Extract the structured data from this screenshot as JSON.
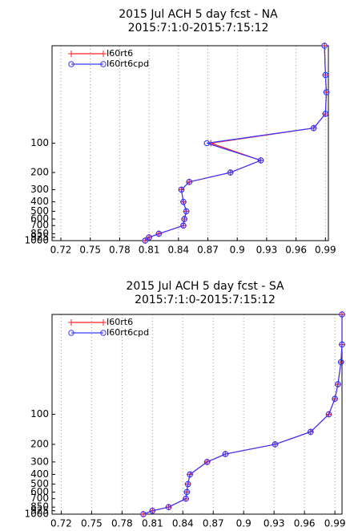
{
  "chart_data": [
    {
      "type": "line",
      "title": "2015 Jul ACH  5 day fcst - NA",
      "subtitle": "2015:7:1:0-2015:7:15:12",
      "y": [
        10,
        20,
        30,
        50,
        70,
        100,
        150,
        200,
        250,
        300,
        400,
        500,
        600,
        700,
        850,
        925,
        1000
      ],
      "series": [
        {
          "name": "I60rt6",
          "color": "#ff2020",
          "values": [
            0.989,
            0.99,
            0.991,
            0.99,
            0.978,
            0.873,
            0.924,
            0.893,
            0.851,
            0.843,
            0.845,
            0.848,
            0.846,
            0.845,
            0.82,
            0.81,
            0.806
          ]
        },
        {
          "name": "I60rt6cpd",
          "color": "#3a3aff",
          "values": [
            0.989,
            0.99,
            0.991,
            0.99,
            0.978,
            0.869,
            0.924,
            0.893,
            0.851,
            0.843,
            0.845,
            0.848,
            0.846,
            0.845,
            0.82,
            0.81,
            0.806
          ]
        }
      ],
      "xlim": [
        0.711,
        0.993
      ],
      "xticks": [
        0.72,
        0.75,
        0.78,
        0.81,
        0.84,
        0.87,
        0.9,
        0.93,
        0.96,
        0.99
      ],
      "ylim": [
        1000,
        10
      ],
      "yticks": [
        100,
        200,
        300,
        400,
        500,
        600,
        700,
        850,
        925,
        1000
      ],
      "ylog": true,
      "grid": true,
      "legend": "upper left"
    },
    {
      "type": "line",
      "title": "2015 Jul ACH  5 day fcst - SA",
      "subtitle": "2015:7:1:0-2015:7:15:12",
      "y": [
        10,
        20,
        30,
        50,
        70,
        100,
        150,
        200,
        250,
        300,
        400,
        500,
        600,
        700,
        850,
        925,
        1000
      ],
      "series": [
        {
          "name": "I60rt6",
          "color": "#ff2020",
          "values": [
            0.997,
            0.997,
            0.996,
            0.993,
            0.99,
            0.984,
            0.966,
            0.931,
            0.882,
            0.864,
            0.847,
            0.845,
            0.844,
            0.843,
            0.826,
            0.81,
            0.801
          ]
        },
        {
          "name": "I60rt6cpd",
          "color": "#3a3aff",
          "values": [
            0.997,
            0.997,
            0.996,
            0.993,
            0.99,
            0.984,
            0.966,
            0.931,
            0.882,
            0.864,
            0.847,
            0.845,
            0.844,
            0.843,
            0.826,
            0.81,
            0.801
          ]
        }
      ],
      "xlim": [
        0.711,
        0.997
      ],
      "xticks": [
        0.72,
        0.75,
        0.78,
        0.81,
        0.84,
        0.87,
        0.9,
        0.93,
        0.96,
        0.99
      ],
      "ylim": [
        1000,
        10
      ],
      "yticks": [
        100,
        200,
        300,
        400,
        500,
        600,
        700,
        850,
        925,
        1000
      ],
      "ylog": true,
      "grid": true,
      "legend": "upper left"
    }
  ]
}
